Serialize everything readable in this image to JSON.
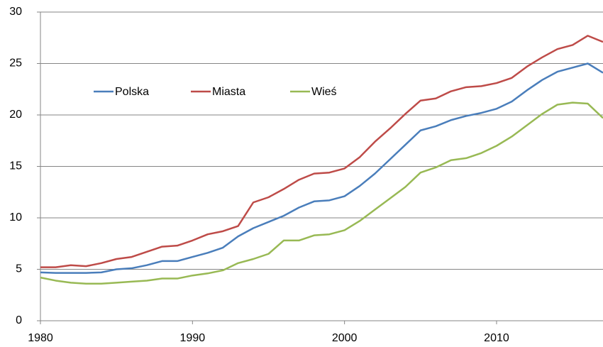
{
  "chart_data": {
    "type": "line",
    "x": [
      1980,
      1981,
      1982,
      1983,
      1984,
      1985,
      1986,
      1987,
      1988,
      1989,
      1990,
      1991,
      1992,
      1993,
      1994,
      1995,
      1996,
      1997,
      1998,
      1999,
      2000,
      2001,
      2002,
      2003,
      2004,
      2005,
      2006,
      2007,
      2008,
      2009,
      2010,
      2011,
      2012,
      2013,
      2014,
      2015,
      2016,
      2017
    ],
    "series": [
      {
        "name": "Polska",
        "color": "#4a7ebb",
        "values": [
          4.7,
          4.65,
          4.65,
          4.65,
          4.7,
          5.0,
          5.1,
          5.4,
          5.8,
          5.8,
          6.2,
          6.6,
          7.1,
          8.2,
          9.0,
          9.6,
          10.2,
          11.0,
          11.6,
          11.7,
          12.1,
          13.1,
          14.3,
          15.7,
          17.1,
          18.5,
          18.9,
          19.5,
          19.9,
          20.2,
          20.6,
          21.3,
          22.4,
          23.4,
          24.2,
          24.6,
          25.0,
          24.1
        ]
      },
      {
        "name": "Miasta",
        "color": "#be4b48",
        "values": [
          5.2,
          5.2,
          5.4,
          5.3,
          5.6,
          6.0,
          6.2,
          6.7,
          7.2,
          7.3,
          7.8,
          8.4,
          8.7,
          9.2,
          11.5,
          12.0,
          12.8,
          13.7,
          14.3,
          14.4,
          14.8,
          15.9,
          17.4,
          18.7,
          20.1,
          21.4,
          21.6,
          22.3,
          22.7,
          22.8,
          23.1,
          23.6,
          24.7,
          25.6,
          26.4,
          26.8,
          27.7,
          27.1
        ]
      },
      {
        "name": "Wieś",
        "color": "#98b954",
        "values": [
          4.2,
          3.9,
          3.7,
          3.6,
          3.6,
          3.7,
          3.8,
          3.9,
          4.1,
          4.1,
          4.4,
          4.6,
          4.9,
          5.6,
          6.0,
          6.5,
          7.8,
          7.8,
          8.3,
          8.4,
          8.8,
          9.7,
          10.8,
          11.9,
          13.0,
          14.4,
          14.9,
          15.6,
          15.8,
          16.3,
          17.0,
          17.9,
          19.0,
          20.1,
          21.0,
          21.2,
          21.1,
          19.7
        ]
      }
    ],
    "xlim": [
      1980,
      2017
    ],
    "xticks": [
      1980,
      1990,
      2000,
      2010
    ],
    "ylim": [
      0,
      30
    ],
    "yticks": [
      0,
      5,
      10,
      15,
      20,
      25,
      30
    ],
    "grid": true,
    "legend": "top-left"
  }
}
